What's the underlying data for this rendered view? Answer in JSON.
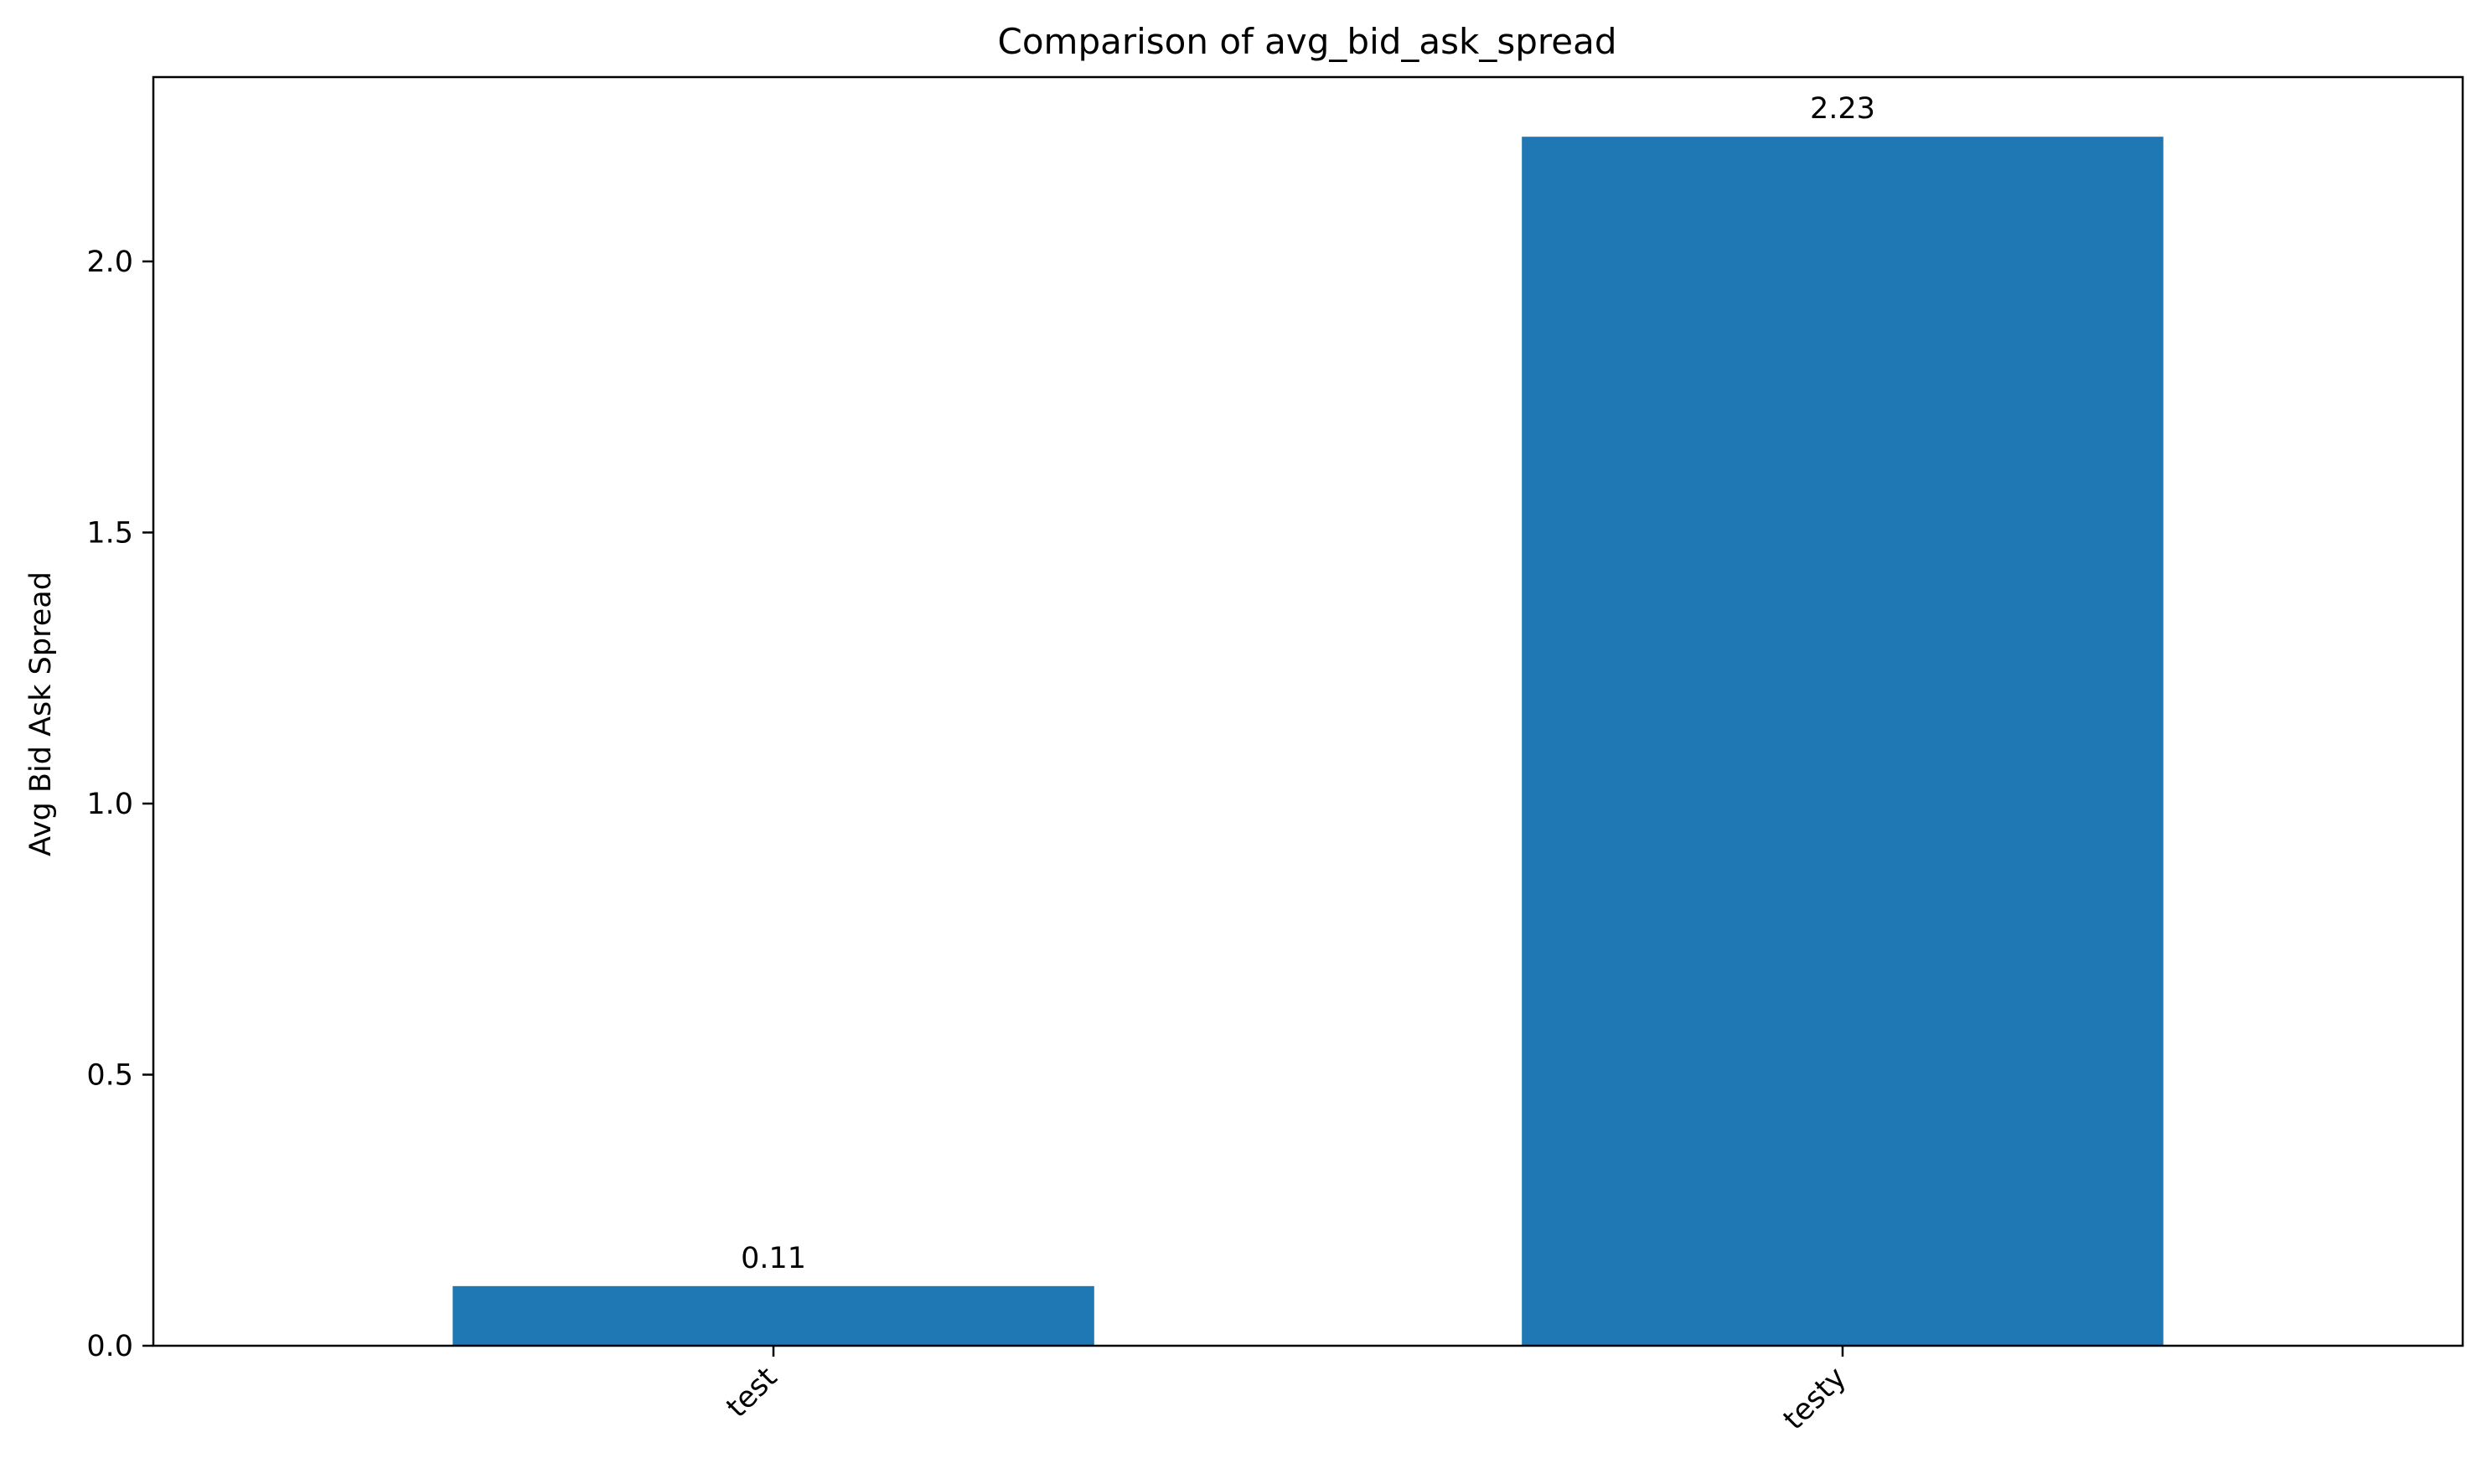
{
  "chart_data": {
    "type": "bar",
    "title": "Comparison of avg_bid_ask_spread",
    "xlabel": "",
    "ylabel": "Avg Bid Ask Spread",
    "categories": [
      "test",
      "testy"
    ],
    "values": [
      0.11,
      2.23
    ],
    "data_labels": [
      "0.11",
      "2.23"
    ],
    "ylim": [
      0,
      2.34
    ],
    "yticks": [
      0.0,
      0.5,
      1.0,
      1.5,
      2.0
    ],
    "ytick_labels": [
      "0.0",
      "0.5",
      "1.0",
      "1.5",
      "2.0"
    ],
    "grid": false,
    "legend": "none",
    "bar_color": "#1f77b4"
  }
}
